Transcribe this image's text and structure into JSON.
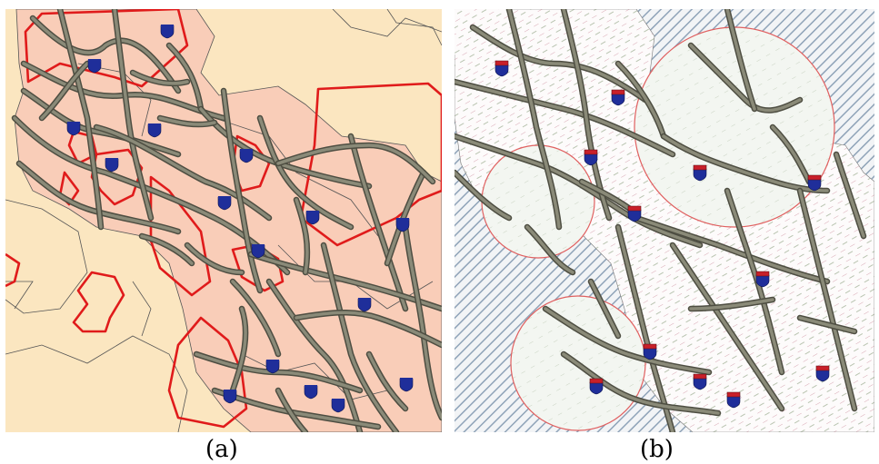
{
  "panels": [
    {
      "id": "a",
      "caption": "(a)"
    },
    {
      "id": "b",
      "caption": "(b)"
    }
  ],
  "colors": {
    "background_a": "#FBE6C0",
    "region_fill_a": "#F9CDB8",
    "road": "#8A8A78",
    "road_edge": "#4E4E42",
    "boundary": "#555555",
    "highlight_red": "#E01B1B",
    "shield_blue": "#1F2E9A",
    "shield_red": "#C8202A",
    "hatch_b": "#8FA3B8",
    "circle_b": "#E06060"
  },
  "icons": {
    "marker": "interstate-shield-icon"
  }
}
